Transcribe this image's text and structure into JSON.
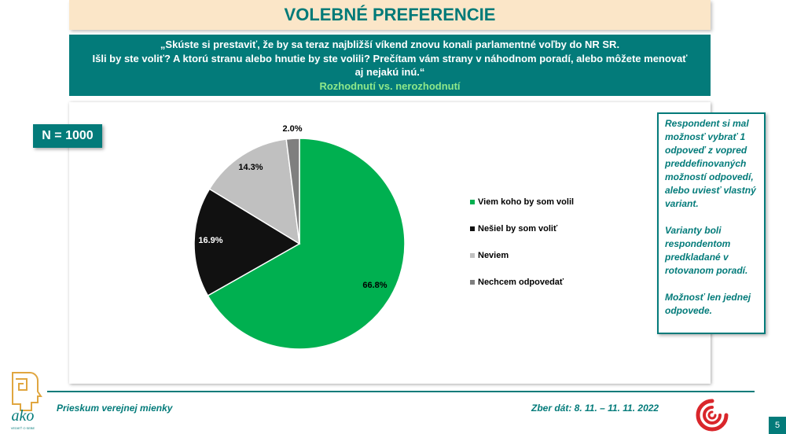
{
  "header": {
    "title": "VOLEBNÉ PREFERENCIE"
  },
  "question": {
    "lines": [
      "„Skúste si prestaviť, že by sa teraz najbližší víkend znovu konali parlamentné voľby do NR SR.",
      "Išli by ste voliť? A ktorú stranu alebo hnutie by ste volili? Prečítam vám strany v náhodnom poradí, alebo môžete menovať",
      "aj nejakú inú.“"
    ],
    "subtitle": "Rozhodnutí vs. nerozhodnutí"
  },
  "sample": {
    "label": "N = 1000"
  },
  "chart_data": {
    "type": "pie",
    "title": "",
    "slices": [
      {
        "label": "Viem koho by som volil",
        "value": 66.8,
        "display": "66.8%",
        "color": "#00b050"
      },
      {
        "label": "Nešiel by som voliť",
        "value": 16.9,
        "display": "16.9%",
        "color": "#111111"
      },
      {
        "label": "Neviem",
        "value": 14.3,
        "display": "14.3%",
        "color": "#c0c0c0"
      },
      {
        "label": "Nechcem odpovedať",
        "value": 2.0,
        "display": "2.0%",
        "color": "#7f7f7f"
      }
    ],
    "legend_position": "right"
  },
  "note": {
    "paragraphs": [
      "Respondent si mal možnosť vybrať 1 odpoveď z vopred preddefinovaných možností odpovedí, alebo uviesť vlastný variant.",
      "Varianty boli respondentom predkladané v rotovanom poradí.",
      "Možnosť len jednej odpovede."
    ]
  },
  "footer": {
    "left": "Prieskum verejnej mienky",
    "right": "Zber dát: 8. 11. – 11. 11. 2022",
    "page": "5",
    "logo_text": "ako",
    "logo_tagline": "VEDIEŤ O SEBE"
  },
  "colors": {
    "teal": "#037b7a",
    "title_bg": "#fbe6c8",
    "accent_green": "#8fe88a",
    "logo_red": "#d9262b",
    "logo_gold": "#e0a640"
  }
}
